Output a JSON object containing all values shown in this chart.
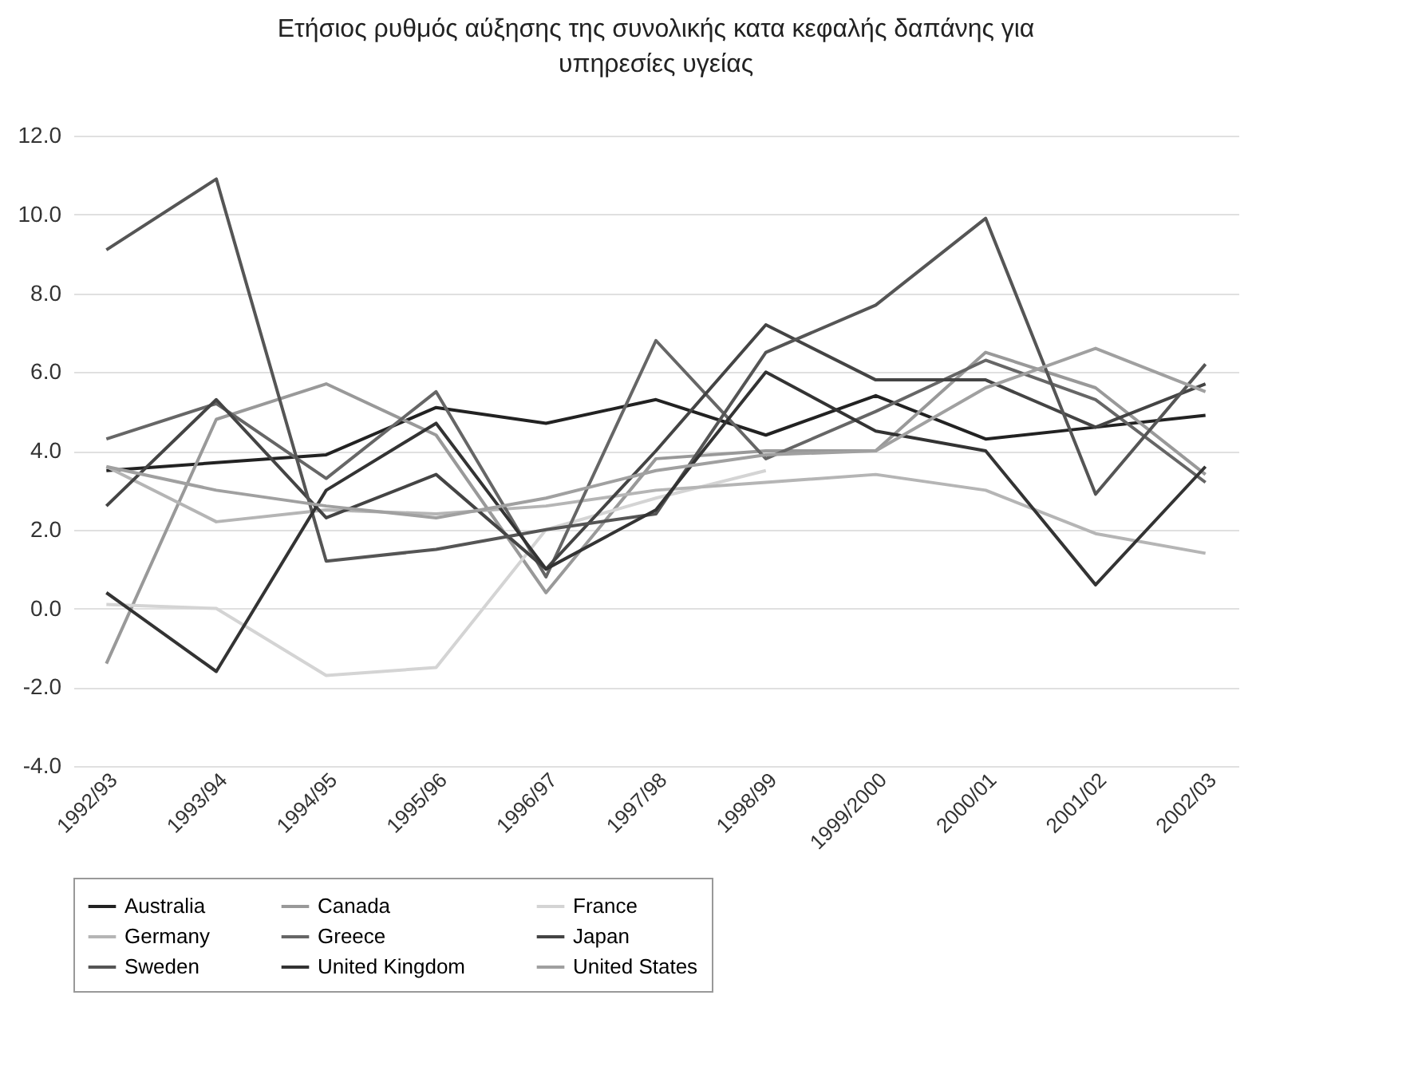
{
  "chart_data": {
    "type": "line",
    "title": "Ετήσιος ρυθμός αύξησης της συνολικής κατα κεφαλής δαπάνης για υπηρεσίες υγείας",
    "categories": [
      "1992/93",
      "1993/94",
      "1994/95",
      "1995/96",
      "1996/97",
      "1997/98",
      "1998/99",
      "1999/2000",
      "2000/01",
      "2001/02",
      "2002/03"
    ],
    "series": [
      {
        "name": "Australia",
        "color": "#222222",
        "values": [
          3.5,
          3.7,
          3.9,
          5.1,
          4.7,
          5.3,
          4.4,
          5.4,
          4.3,
          4.6,
          4.9
        ]
      },
      {
        "name": "Canada",
        "color": "#999999",
        "values": [
          -1.4,
          4.8,
          5.7,
          4.4,
          0.4,
          3.8,
          4.0,
          4.0,
          6.5,
          5.6,
          3.4
        ]
      },
      {
        "name": "France",
        "color": "#d4d4d4",
        "values": [
          0.1,
          0.0,
          -1.7,
          -1.5,
          2.0,
          2.8,
          3.5,
          null,
          null,
          null,
          null
        ]
      },
      {
        "name": "Germany",
        "color": "#b5b5b5",
        "values": [
          3.6,
          2.2,
          2.5,
          2.4,
          2.6,
          3.0,
          3.2,
          3.4,
          3.0,
          1.9,
          1.4
        ]
      },
      {
        "name": "Greece",
        "color": "#666666",
        "values": [
          4.3,
          5.2,
          3.3,
          5.5,
          0.8,
          6.8,
          3.8,
          5.0,
          6.3,
          5.3,
          3.2
        ]
      },
      {
        "name": "Japan",
        "color": "#444444",
        "values": [
          2.6,
          5.3,
          2.3,
          3.4,
          1.0,
          4.0,
          7.2,
          5.8,
          5.8,
          4.6,
          5.7
        ]
      },
      {
        "name": "Sweden",
        "color": "#555555",
        "values": [
          9.1,
          10.9,
          1.2,
          1.5,
          2.0,
          2.4,
          6.5,
          7.7,
          9.9,
          2.9,
          6.2
        ]
      },
      {
        "name": "United Kingdom",
        "color": "#333333",
        "values": [
          0.4,
          -1.6,
          3.0,
          4.7,
          1.0,
          2.5,
          6.0,
          4.5,
          4.0,
          0.6,
          3.6
        ]
      },
      {
        "name": "United States",
        "color": "#a0a0a0",
        "values": [
          3.6,
          3.0,
          2.6,
          2.3,
          2.8,
          3.5,
          3.9,
          4.0,
          5.6,
          6.6,
          5.5
        ]
      }
    ],
    "ylim": [
      -4,
      12
    ],
    "yticks": [
      {
        "value": -4,
        "label": "-4.0"
      },
      {
        "value": -2,
        "label": "-2.0"
      },
      {
        "value": 0,
        "label": "0.0"
      },
      {
        "value": 2,
        "label": "2.0"
      },
      {
        "value": 4,
        "label": "4.0"
      },
      {
        "value": 6,
        "label": "6.0"
      },
      {
        "value": 8,
        "label": "8.0"
      },
      {
        "value": 10,
        "label": "10.0"
      },
      {
        "value": 12,
        "label": "12.0"
      }
    ],
    "grid": "y",
    "legend": "bottom",
    "line_style": "solid"
  }
}
